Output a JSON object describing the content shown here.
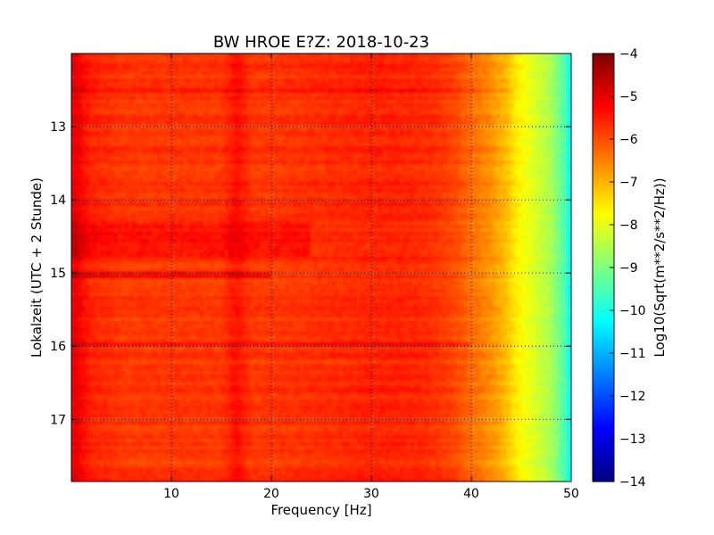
{
  "chart_data": {
    "type": "heatmap",
    "title": "BW HROE E?Z: 2018-10-23",
    "xlabel": "Frequency [Hz]",
    "ylabel": "Lokalzeit (UTC + 2 Stunde)",
    "xlim": [
      0,
      50
    ],
    "ylim": [
      17.85,
      12.0
    ],
    "x_ticks": [
      10,
      20,
      30,
      40,
      50
    ],
    "x_tick_labels": [
      "10",
      "20",
      "30",
      "40",
      "50"
    ],
    "y_ticks": [
      13,
      14,
      15,
      16,
      17
    ],
    "y_tick_labels": [
      "13",
      "14",
      "15",
      "16",
      "17"
    ],
    "grid": true,
    "colorbar": {
      "label": "Log10(Sqrt(m**2/s**2/Hz))",
      "range": [
        -14,
        -4
      ],
      "ticks": [
        -4,
        -5,
        -6,
        -7,
        -8,
        -9,
        -10,
        -11,
        -12,
        -13,
        -14
      ],
      "tick_labels": [
        "−4",
        "−5",
        "−6",
        "−7",
        "−8",
        "−9",
        "−10",
        "−11",
        "−12",
        "−13",
        "−14"
      ],
      "colormap": "jet"
    },
    "frequency_profile": {
      "frequency_hz": [
        0,
        0.5,
        1,
        2,
        5,
        10,
        15,
        16.5,
        17,
        18,
        20,
        25,
        30,
        33,
        36,
        38,
        40,
        42,
        43.5,
        44.5,
        46,
        48,
        49.5,
        50
      ],
      "log10_amplitude": [
        -5.2,
        -5.0,
        -5.3,
        -5.6,
        -5.8,
        -5.8,
        -5.8,
        -5.4,
        -5.5,
        -5.8,
        -5.8,
        -5.7,
        -5.6,
        -5.6,
        -5.7,
        -5.9,
        -6.3,
        -6.7,
        -7.1,
        -7.6,
        -8.0,
        -8.6,
        -9.6,
        -10.5
      ]
    },
    "time_bands": [
      {
        "start": 14.28,
        "end": 14.8,
        "freq_max_hz": 24,
        "delta": 0.4
      },
      {
        "start": 14.98,
        "end": 15.05,
        "freq_max_hz": 20,
        "delta": 0.5
      },
      {
        "start": 15.95,
        "end": 16.0,
        "freq_max_hz": 40,
        "delta": 0.3
      },
      {
        "start": 12.48,
        "end": 12.55,
        "freq_max_hz": 44,
        "delta": 0.3
      }
    ]
  }
}
